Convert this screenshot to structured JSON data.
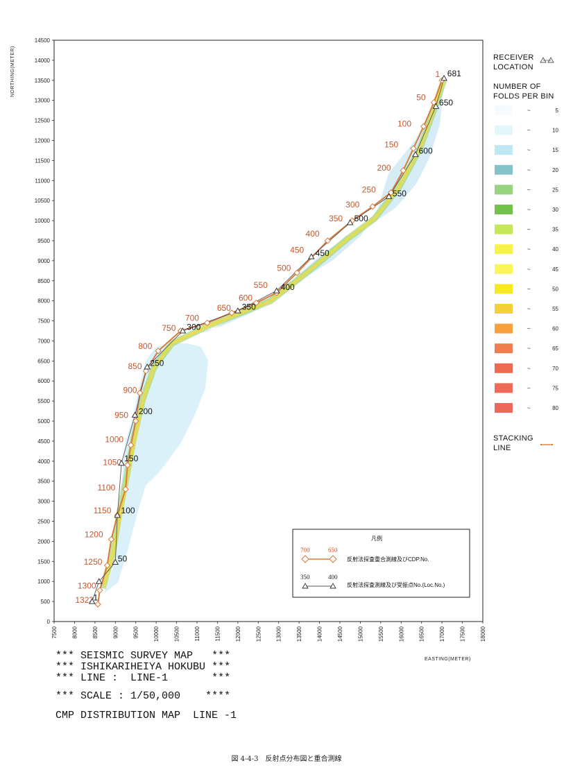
{
  "axes": {
    "northing_label": "NORTHING(METER)",
    "easting_label": "EASTING(METER)",
    "y_ticks": [
      "0",
      "500",
      "1000",
      "1500",
      "2000",
      "2500",
      "3000",
      "3500",
      "4000",
      "4500",
      "5000",
      "5500",
      "6000",
      "6500",
      "7000",
      "7500",
      "8000",
      "8500",
      "9000",
      "9500",
      "10000",
      "10500",
      "11000",
      "11500",
      "12000",
      "12500",
      "13000",
      "13500",
      "14000",
      "14500"
    ],
    "x_ticks": [
      "7500",
      "8000",
      "8500",
      "9000",
      "9500",
      "10000",
      "10500",
      "11000",
      "11500",
      "12000",
      "12500",
      "13000",
      "13500",
      "14000",
      "14500",
      "15000",
      "15500",
      "16000",
      "16500",
      "17000",
      "17500",
      "18000"
    ],
    "xlim": [
      7500,
      18000
    ],
    "ylim": [
      0,
      14500
    ]
  },
  "stacking_line": {
    "points": [
      [
        8570,
        430
      ],
      [
        8620,
        780
      ],
      [
        8800,
        1400
      ],
      [
        8900,
        2050
      ],
      [
        9050,
        2650
      ],
      [
        9250,
        3300
      ],
      [
        9300,
        3900
      ],
      [
        9380,
        4400
      ],
      [
        9500,
        5000
      ],
      [
        9600,
        5700
      ],
      [
        9750,
        6250
      ],
      [
        10050,
        6750
      ],
      [
        10600,
        7250
      ],
      [
        11250,
        7450
      ],
      [
        11850,
        7700
      ],
      [
        12450,
        7950
      ],
      [
        12950,
        8200
      ],
      [
        13450,
        8700
      ],
      [
        14200,
        9500
      ],
      [
        14800,
        10000
      ],
      [
        15300,
        10350
      ],
      [
        15750,
        10700
      ],
      [
        16050,
        11250
      ],
      [
        16300,
        11800
      ],
      [
        16550,
        12350
      ],
      [
        16800,
        12950
      ],
      [
        17000,
        13500
      ]
    ],
    "labels": [
      {
        "text": "1",
        "x": 16950,
        "y": 13580
      },
      {
        "text": "50",
        "x": 16600,
        "y": 13000
      },
      {
        "text": "100",
        "x": 16250,
        "y": 12350
      },
      {
        "text": "150",
        "x": 15930,
        "y": 11830
      },
      {
        "text": "200",
        "x": 15750,
        "y": 11250
      },
      {
        "text": "250",
        "x": 15380,
        "y": 10700
      },
      {
        "text": "300",
        "x": 14980,
        "y": 10330
      },
      {
        "text": "350",
        "x": 14570,
        "y": 9980
      },
      {
        "text": "400",
        "x": 14000,
        "y": 9600
      },
      {
        "text": "450",
        "x": 13620,
        "y": 9200
      },
      {
        "text": "500",
        "x": 13300,
        "y": 8750
      },
      {
        "text": "550",
        "x": 12730,
        "y": 8320
      },
      {
        "text": "600",
        "x": 12360,
        "y": 8000
      },
      {
        "text": "650",
        "x": 11830,
        "y": 7750
      },
      {
        "text": "700",
        "x": 11050,
        "y": 7500
      },
      {
        "text": "750",
        "x": 10480,
        "y": 7250
      },
      {
        "text": "800",
        "x": 9900,
        "y": 6800
      },
      {
        "text": "850",
        "x": 9650,
        "y": 6300
      },
      {
        "text": "900",
        "x": 9530,
        "y": 5700
      },
      {
        "text": "950",
        "x": 9320,
        "y": 5080
      },
      {
        "text": "1000",
        "x": 9200,
        "y": 4470
      },
      {
        "text": "1050",
        "x": 9150,
        "y": 3900
      },
      {
        "text": "1100",
        "x": 9000,
        "y": 3270
      },
      {
        "text": "1150",
        "x": 8900,
        "y": 2700
      },
      {
        "text": "1200",
        "x": 8700,
        "y": 2100
      },
      {
        "text": "1250",
        "x": 8680,
        "y": 1420
      },
      {
        "text": "1300",
        "x": 8530,
        "y": 820
      },
      {
        "text": "1323",
        "x": 8470,
        "y": 470
      }
    ]
  },
  "receiver_line": {
    "points": [
      [
        8430,
        500
      ],
      [
        8600,
        1000
      ],
      [
        9000,
        1480
      ],
      [
        9050,
        2650
      ],
      [
        9150,
        3950
      ],
      [
        9480,
        5150
      ],
      [
        9780,
        6350
      ],
      [
        10650,
        7250
      ],
      [
        12000,
        7750
      ],
      [
        12950,
        8250
      ],
      [
        13800,
        9100
      ],
      [
        14750,
        9950
      ],
      [
        15700,
        10600
      ],
      [
        16350,
        11650
      ],
      [
        16850,
        12850
      ],
      [
        17050,
        13550
      ]
    ],
    "labels": [
      {
        "text": "1",
        "x": 8460,
        "y": 530
      },
      {
        "text": "50",
        "x": 9060,
        "y": 1500
      },
      {
        "text": "100",
        "x": 9140,
        "y": 2700
      },
      {
        "text": "150",
        "x": 9220,
        "y": 4000
      },
      {
        "text": "200",
        "x": 9570,
        "y": 5170
      },
      {
        "text": "250",
        "x": 9850,
        "y": 6380
      },
      {
        "text": "300",
        "x": 10750,
        "y": 7280
      },
      {
        "text": "350",
        "x": 12100,
        "y": 7780
      },
      {
        "text": "400",
        "x": 13050,
        "y": 8270
      },
      {
        "text": "450",
        "x": 13900,
        "y": 9120
      },
      {
        "text": "500",
        "x": 14850,
        "y": 9980
      },
      {
        "text": "550",
        "x": 15790,
        "y": 10610
      },
      {
        "text": "600",
        "x": 16430,
        "y": 11670
      },
      {
        "text": "650",
        "x": 16930,
        "y": 12870
      },
      {
        "text": "681",
        "x": 17130,
        "y": 13600
      }
    ]
  },
  "legend_right": {
    "receiver_heading_1": "RECEIVER",
    "receiver_heading_2": "LOCATION",
    "folds_heading_1": "NUMBER OF",
    "folds_heading_2": "FOLDS PER BIN",
    "tilde": "~",
    "fold_classes": [
      {
        "value": "5",
        "color": "#f5fbff"
      },
      {
        "value": "10",
        "color": "#e4f5fc"
      },
      {
        "value": "15",
        "color": "#bfe8f7"
      },
      {
        "value": "20",
        "color": "#86c3c9"
      },
      {
        "value": "25",
        "color": "#98d381"
      },
      {
        "value": "30",
        "color": "#73c14a"
      },
      {
        "value": "35",
        "color": "#c6e65a"
      },
      {
        "value": "40",
        "color": "#f7f24a"
      },
      {
        "value": "45",
        "color": "#fbf45b"
      },
      {
        "value": "50",
        "color": "#f7e821"
      },
      {
        "value": "55",
        "color": "#f4d13a"
      },
      {
        "value": "60",
        "color": "#f7a13e"
      },
      {
        "value": "65",
        "color": "#ee7e4e"
      },
      {
        "value": "70",
        "color": "#ef6a52"
      },
      {
        "value": "75",
        "color": "#ee6b5a"
      },
      {
        "value": "80",
        "color": "#ee675c"
      }
    ],
    "stacking_heading_1": "STACKING",
    "stacking_heading_2": "LINE"
  },
  "legend_box": {
    "title": "凡例",
    "cdp_a": "700",
    "cdp_b": "650",
    "cdp_text": "反射法探査重合測線及びCDP.No.",
    "loc_a": "350",
    "loc_b": "400",
    "loc_text": "反射法探査測線及び受振点No.(Loc.No.)"
  },
  "info": {
    "line1_a": "***",
    "line1_b": "SEISMIC SURVEY MAP",
    "line1_c": "***",
    "line2_a": "***",
    "line2_b": "ISHIKARIHEIYA HOKUBU",
    "line2_c": "***",
    "line3_a": "***",
    "line3_b": "LINE :  LINE-1",
    "line3_c": "***",
    "line4_a": "***",
    "line4_b": "SCALE : 1/50,000",
    "line4_c": "****",
    "line5": "CMP DISTRIBUTION MAP  LINE -1"
  },
  "caption": "図 4-4-3　反射点分布図と重合測線",
  "colors": {
    "stacking": "#d97a3a",
    "receiver": "#555555",
    "label_red": "#c4572e",
    "coverage_blue": "#d6eff9"
  }
}
